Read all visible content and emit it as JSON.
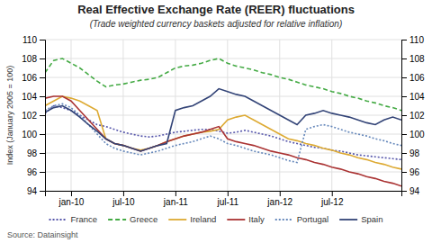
{
  "chart_data": {
    "type": "line",
    "title": "Real Effective Exchange Rate (REER) fluctuations",
    "subtitle": "(Trade weighted currency baskets adjusted for relative inflation)",
    "y_label": "Index (January 2005 = 100)",
    "annotations": [
      "Source: Datainsight"
    ],
    "categories": [
      null,
      null,
      null,
      "jan-10",
      null,
      null,
      null,
      null,
      null,
      "jul-10",
      null,
      null,
      null,
      null,
      null,
      "jan-11",
      null,
      null,
      null,
      null,
      null,
      "jul-11",
      null,
      null,
      null,
      null,
      null,
      "jan-12",
      null,
      null,
      null,
      null,
      null,
      "jul-12",
      null,
      null,
      null,
      null,
      null,
      null,
      null,
      null
    ],
    "ylim": [
      94,
      110
    ],
    "yticks": [
      94,
      96,
      98,
      100,
      102,
      104,
      106,
      108,
      110
    ],
    "y2lim": [
      94,
      110
    ],
    "y2ticks": [
      94,
      96,
      98,
      100,
      102,
      104,
      106,
      108,
      110
    ],
    "grid": true,
    "legend": "bottom",
    "series": [
      {
        "name": "France",
        "color": "#5555aa",
        "line_style": "dotted",
        "values": [
          102.2,
          103.0,
          102.8,
          102.5,
          102.0,
          101.5,
          101.0,
          100.8,
          100.5,
          100.2,
          100.0,
          99.8,
          99.7,
          99.8,
          100.0,
          100.2,
          100.3,
          100.4,
          100.5,
          100.5,
          100.3,
          100.1,
          100.2,
          100.4,
          100.2,
          100.0,
          99.8,
          99.5,
          99.2,
          99.0,
          98.8,
          98.6,
          98.5,
          98.3,
          98.2,
          98.0,
          97.8,
          97.7,
          97.6,
          97.5,
          97.4,
          97.3
        ]
      },
      {
        "name": "Greece",
        "color": "#44aa44",
        "line_style": "dashed",
        "values": [
          106.5,
          107.8,
          108.0,
          107.5,
          107.0,
          106.3,
          105.6,
          105.0,
          105.2,
          105.3,
          105.5,
          105.7,
          105.8,
          106.0,
          106.5,
          107.0,
          107.2,
          107.3,
          107.5,
          107.8,
          108.0,
          107.5,
          107.2,
          107.0,
          106.8,
          106.5,
          106.3,
          106.0,
          105.8,
          105.5,
          105.2,
          105.0,
          104.8,
          104.5,
          104.3,
          104.0,
          103.8,
          103.5,
          103.3,
          103.0,
          102.8,
          102.5
        ]
      },
      {
        "name": "Ireland",
        "color": "#ddaa33",
        "line_style": "solid",
        "values": [
          103.0,
          103.5,
          104.0,
          103.8,
          103.5,
          103.0,
          102.5,
          99.5,
          99.0,
          98.8,
          98.5,
          98.3,
          98.5,
          98.8,
          99.2,
          99.5,
          99.8,
          100.0,
          100.2,
          100.3,
          100.5,
          101.5,
          101.8,
          102.0,
          101.5,
          101.0,
          100.5,
          100.0,
          99.5,
          99.3,
          99.0,
          98.8,
          98.5,
          98.3,
          98.0,
          97.8,
          97.5,
          97.3,
          97.0,
          96.8,
          96.5,
          96.3
        ]
      },
      {
        "name": "Italy",
        "color": "#aa3333",
        "line_style": "solid",
        "values": [
          103.8,
          104.0,
          104.0,
          103.5,
          102.5,
          101.5,
          100.5,
          99.5,
          99.0,
          98.8,
          98.5,
          98.2,
          98.5,
          98.8,
          99.2,
          99.5,
          99.8,
          100.0,
          100.2,
          100.5,
          100.8,
          99.5,
          99.2,
          99.0,
          98.8,
          98.5,
          98.2,
          98.0,
          97.8,
          97.5,
          97.3,
          97.0,
          96.8,
          96.5,
          96.3,
          96.0,
          95.8,
          95.5,
          95.3,
          95.0,
          94.8,
          94.5
        ]
      },
      {
        "name": "Portugal",
        "color": "#6688bb",
        "line_style": "dotted",
        "values": [
          102.5,
          103.0,
          103.2,
          102.8,
          102.0,
          101.0,
          100.0,
          99.0,
          98.5,
          98.2,
          98.0,
          97.8,
          98.0,
          98.2,
          98.5,
          98.8,
          99.0,
          99.2,
          99.5,
          99.8,
          99.5,
          99.0,
          98.8,
          98.5,
          98.2,
          98.0,
          97.8,
          97.5,
          97.2,
          97.0,
          100.5,
          100.8,
          101.0,
          100.8,
          100.5,
          100.2,
          100.0,
          99.8,
          99.5,
          99.3,
          99.0,
          98.8
        ]
      },
      {
        "name": "Spain",
        "color": "#334477",
        "line_style": "solid",
        "values": [
          102.3,
          102.8,
          103.0,
          102.5,
          101.8,
          101.0,
          100.3,
          99.5,
          99.0,
          98.8,
          98.5,
          98.2,
          98.5,
          98.8,
          99.0,
          102.5,
          102.8,
          103.0,
          103.5,
          104.0,
          104.8,
          104.5,
          104.2,
          104.0,
          103.5,
          103.0,
          102.5,
          102.0,
          101.5,
          101.0,
          102.0,
          102.2,
          102.5,
          102.2,
          102.0,
          101.8,
          101.5,
          101.2,
          101.0,
          101.5,
          101.8,
          101.5
        ]
      }
    ]
  }
}
